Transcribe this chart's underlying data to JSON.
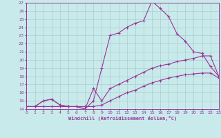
{
  "bg_color": "#c8eaea",
  "line_color": "#993399",
  "grid_color": "#aacccc",
  "xlabel": "Windchill (Refroidissement éolien,°C)",
  "ylim": [
    14,
    27
  ],
  "xlim": [
    0,
    23
  ],
  "yticks": [
    14,
    15,
    16,
    17,
    18,
    19,
    20,
    21,
    22,
    23,
    24,
    25,
    26,
    27
  ],
  "xticks": [
    0,
    1,
    2,
    3,
    4,
    5,
    6,
    7,
    8,
    9,
    10,
    11,
    12,
    13,
    14,
    15,
    16,
    17,
    18,
    19,
    20,
    21,
    22,
    23
  ],
  "line1_x": [
    0,
    1,
    2,
    3,
    4,
    5,
    6,
    7,
    8,
    9,
    10,
    11,
    12,
    13,
    14,
    15,
    16,
    17,
    18,
    19,
    20,
    21,
    22,
    23
  ],
  "line1_y": [
    14.3,
    14.3,
    15.0,
    15.2,
    14.5,
    14.3,
    14.3,
    14.0,
    16.5,
    15.0,
    16.5,
    17.0,
    17.5,
    18.0,
    18.5,
    19.0,
    19.3,
    19.5,
    19.8,
    20.0,
    20.2,
    20.5,
    20.5,
    18.0
  ],
  "line2_x": [
    0,
    1,
    2,
    3,
    4,
    5,
    6,
    7,
    8,
    9,
    10,
    11,
    12,
    13,
    14,
    15,
    16,
    17,
    18,
    19,
    20,
    21,
    22,
    23
  ],
  "line2_y": [
    14.3,
    14.3,
    14.3,
    14.3,
    14.3,
    14.3,
    14.3,
    14.3,
    14.3,
    14.5,
    15.0,
    15.5,
    16.0,
    16.3,
    16.8,
    17.2,
    17.5,
    17.8,
    18.0,
    18.2,
    18.3,
    18.4,
    18.4,
    17.8
  ],
  "line3_x": [
    0,
    1,
    2,
    3,
    4,
    5,
    6,
    7,
    8,
    9,
    10,
    11,
    12,
    13,
    14,
    15,
    16,
    17,
    18,
    19,
    20,
    21,
    22,
    23
  ],
  "line3_y": [
    14.3,
    14.3,
    15.0,
    15.2,
    14.5,
    14.3,
    14.3,
    14.0,
    15.0,
    19.0,
    23.0,
    23.3,
    24.0,
    24.5,
    24.8,
    27.2,
    26.3,
    25.3,
    23.2,
    22.3,
    21.0,
    20.8,
    19.2,
    18.0
  ]
}
